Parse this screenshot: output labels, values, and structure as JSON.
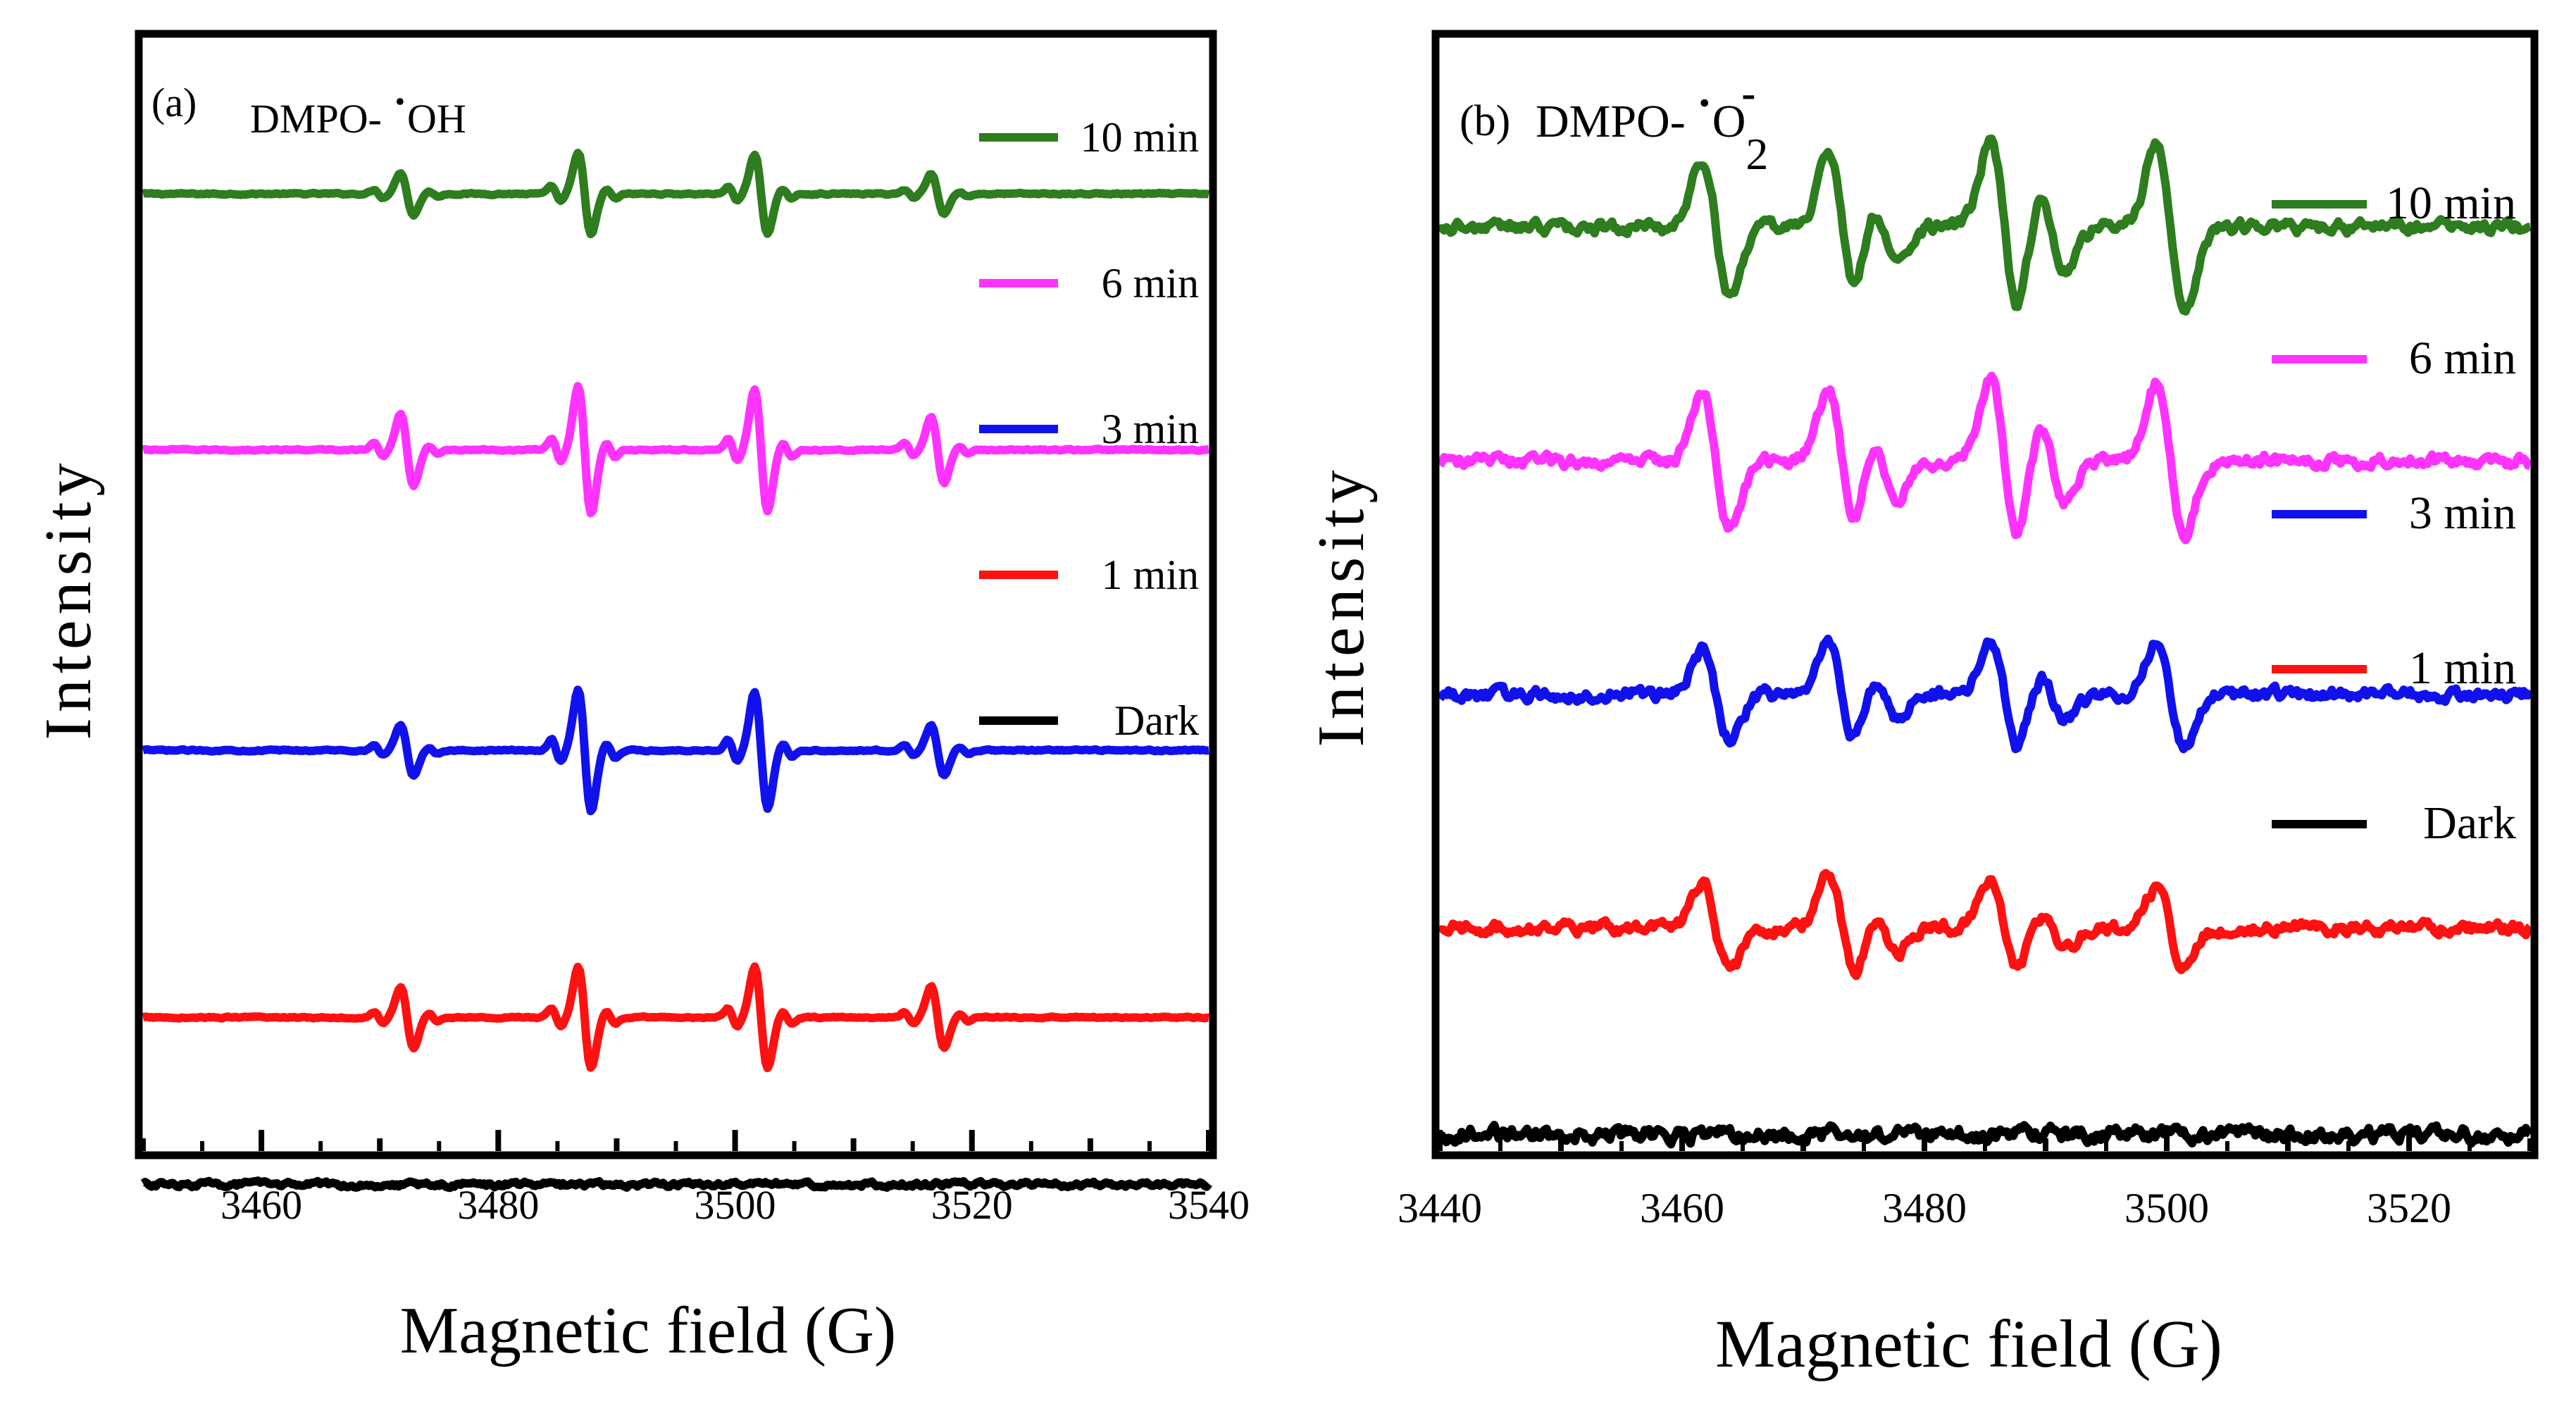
{
  "chart_data": [
    {
      "type": "line",
      "panel_label": "(a)",
      "title_prefix": "DMPO-",
      "title_radical": "OH",
      "xlabel": "Magnetic field (G)",
      "ylabel": "Intensity",
      "xlim": [
        3450,
        3540
      ],
      "major_ticks": [
        3460,
        3480,
        3500,
        3520,
        3540
      ],
      "tick_labels": [
        "3460",
        "3480",
        "3500",
        "3520",
        "3540"
      ],
      "y_axis": "arbitrary units, traces vertically offset, no tick labels",
      "line_centers": [
        3472.3,
        3487.3,
        3502.2,
        3517.1
      ],
      "series": [
        {
          "name": "10 min",
          "legend": "10 min",
          "color": "#2e7d1e",
          "baseline": 0.86,
          "amplitudes": [
            0.42,
            0.8,
            0.78,
            0.4
          ]
        },
        {
          "name": "6 min",
          "legend": "6 min",
          "color": "#ff33ff",
          "baseline": 0.63,
          "amplitudes": [
            0.72,
            1.25,
            1.2,
            0.66
          ]
        },
        {
          "name": "3 min",
          "legend": "3 min",
          "color": "#1111ee",
          "baseline": 0.36,
          "amplitudes": [
            0.5,
            1.2,
            1.15,
            0.5
          ]
        },
        {
          "name": "1 min",
          "legend": "1 min",
          "color": "#ff1111",
          "baseline": 0.12,
          "amplitudes": [
            0.6,
            1.0,
            1.0,
            0.6
          ]
        },
        {
          "name": "Dark",
          "legend": "Dark",
          "color": "#000000",
          "baseline": -0.03,
          "amplitudes": [
            0.0,
            0.0,
            0.0,
            0.0
          ]
        }
      ]
    },
    {
      "type": "line",
      "panel_label": "(b)",
      "title_prefix": "DMPO-",
      "title_radical": "O",
      "title_subscript": "2",
      "title_superscript": "-",
      "xlabel": "Magnetic field (G)",
      "ylabel": "Intensity",
      "xlim": [
        3440,
        3530
      ],
      "major_ticks": [
        3440,
        3460,
        3480,
        3500,
        3520
      ],
      "tick_labels": [
        "3440",
        "3460",
        "3480",
        "3500",
        "3520"
      ],
      "y_axis": "arbitrary units, traces vertically offset, no tick labels",
      "line_centers": [
        3462.8,
        3473.2,
        3476.6,
        3486.6,
        3490.5,
        3500.3
      ],
      "series": [
        {
          "name": "10 min",
          "legend": "10 min",
          "color": "#2e7d1e",
          "baseline": 0.83,
          "amplitudes": [
            1.0,
            1.1,
            0.55,
            1.3,
            0.6,
            1.3
          ]
        },
        {
          "name": "6 min",
          "legend": "6 min",
          "color": "#ff33ff",
          "baseline": 0.62,
          "amplitudes": [
            1.05,
            1.1,
            0.6,
            1.2,
            0.6,
            1.15
          ]
        },
        {
          "name": "3 min",
          "legend": "3 min",
          "color": "#1111ee",
          "baseline": 0.41,
          "amplitudes": [
            0.65,
            0.8,
            0.35,
            0.85,
            0.35,
            0.75
          ]
        },
        {
          "name": "1 min",
          "legend": "1 min",
          "color": "#ff1111",
          "baseline": 0.2,
          "amplitudes": [
            0.65,
            0.8,
            0.35,
            0.7,
            0.3,
            0.6
          ]
        },
        {
          "name": "Dark",
          "legend": "Dark",
          "color": "#000000",
          "baseline": 0.015,
          "amplitudes": [
            0.0,
            0.0,
            0.0,
            0.0,
            0.0,
            0.0
          ]
        }
      ]
    }
  ]
}
